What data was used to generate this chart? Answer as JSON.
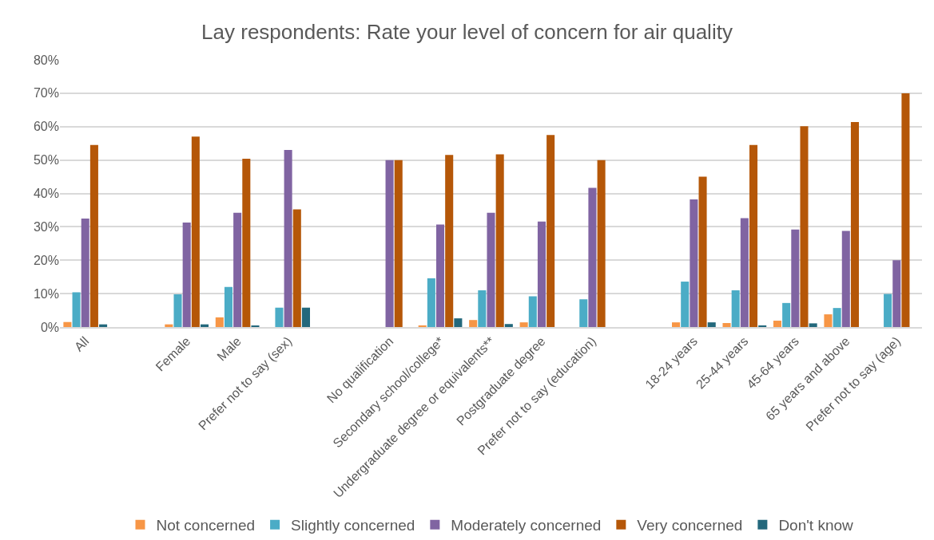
{
  "chart_data": {
    "type": "bar",
    "title": "Lay respondents: Rate your level of concern for air quality",
    "categories": [
      "All",
      null,
      "Female",
      "Male",
      "Prefer not to say (sex)",
      null,
      "No qualification",
      "Secondary school/college*",
      "Undergraduate degree or equivalents**",
      "Postgraduate degree",
      "Prefer not to say (education)",
      null,
      "18-24 years",
      "25-44 years",
      "45-64 years",
      "65 years and above",
      "Prefer not to say (age)"
    ],
    "series": [
      {
        "name": "Not concerned",
        "color": "#f79646",
        "values": [
          1.5,
          null,
          0.8,
          2.9,
          0,
          null,
          0,
          0.5,
          2.1,
          1.4,
          0,
          null,
          1.4,
          1.2,
          1.9,
          3.8,
          0
        ]
      },
      {
        "name": "Slightly concerned",
        "color": "#4bacc6",
        "values": [
          10.4,
          null,
          9.8,
          12.0,
          5.8,
          null,
          0,
          14.6,
          11.0,
          9.2,
          8.3,
          null,
          13.6,
          11.0,
          7.2,
          5.7,
          9.9
        ]
      },
      {
        "name": "Moderately concerned",
        "color": "#8064a2",
        "values": [
          32.5,
          null,
          31.3,
          34.2,
          53.0,
          null,
          50,
          30.7,
          34.2,
          31.6,
          41.7,
          null,
          38.2,
          32.6,
          29.2,
          28.8,
          20
        ]
      },
      {
        "name": "Very concerned",
        "color": "#b55708",
        "values": [
          54.5,
          null,
          57.0,
          50.4,
          35.2,
          null,
          50,
          51.5,
          51.7,
          57.5,
          50,
          null,
          45.0,
          54.5,
          60.1,
          61.4,
          70
        ]
      },
      {
        "name": "Don't know",
        "color": "#23687c",
        "values": [
          0.8,
          null,
          0.8,
          0.4,
          5.8,
          null,
          0,
          2.6,
          0.9,
          0,
          0,
          null,
          1.4,
          0.5,
          1.1,
          0,
          0
        ]
      }
    ],
    "ylim": [
      0,
      80
    ],
    "yticks": [
      {
        "value": 0,
        "label": "0%"
      },
      {
        "value": 10,
        "label": "10%"
      },
      {
        "value": 20,
        "label": "20%"
      },
      {
        "value": 30,
        "label": "30%"
      },
      {
        "value": 40,
        "label": "40%"
      },
      {
        "value": 50,
        "label": "50%"
      },
      {
        "value": 60,
        "label": "60%"
      },
      {
        "value": 70,
        "label": "70%"
      },
      {
        "value": 80,
        "label": "80%"
      }
    ],
    "grid": "y",
    "legend": "bottom"
  }
}
